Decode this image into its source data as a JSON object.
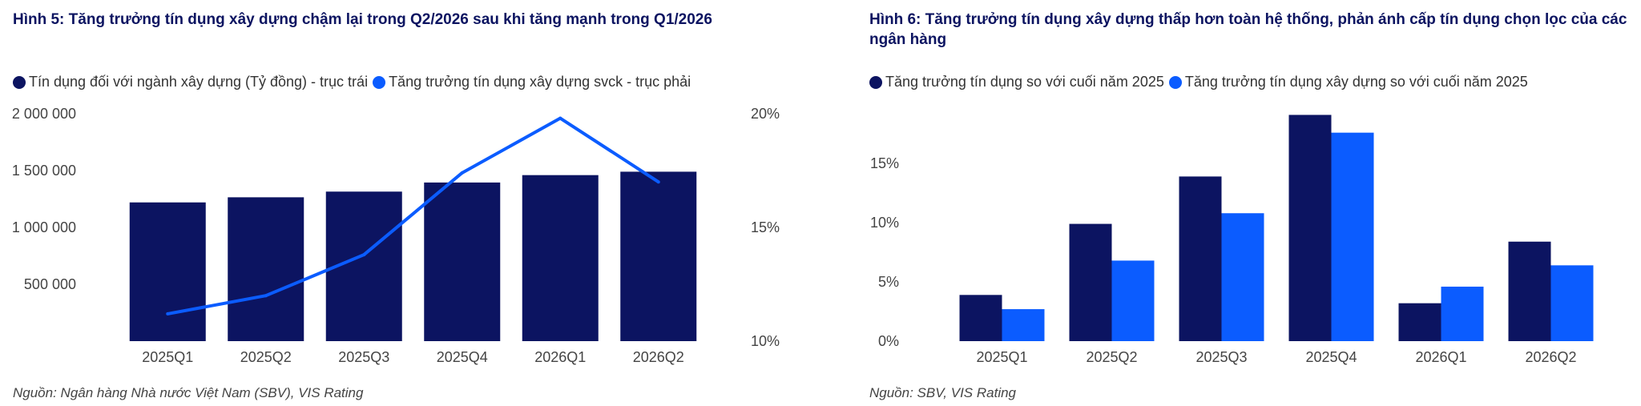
{
  "left": {
    "title": "Hình 5: Tăng trưởng tín dụng xây dựng chậm lại trong Q2/2026 sau khi tăng mạnh trong Q1/2026",
    "legend": [
      {
        "label": "Tín dụng đối với ngành xây dựng (Tỷ đồng) - trục trái",
        "color": "#0c1461"
      },
      {
        "label": "Tăng trưởng tín dụng xây dựng svck - trục phải",
        "color": "#0b5cff"
      }
    ],
    "source": "Nguồn: Ngân hàng Nhà nước Việt Nam (SBV), VIS Rating"
  },
  "right": {
    "title": "Hình 6: Tăng trưởng tín dụng xây dựng thấp hơn toàn hệ thống, phản ánh cấp tín dụng chọn lọc của các ngân hàng",
    "legend": [
      {
        "label": "Tăng trưởng tín dụng so với cuối năm 2025",
        "color": "#0c1461"
      },
      {
        "label": "Tăng trưởng tín dụng xây dựng so với cuối năm 2025",
        "color": "#0b5cff"
      }
    ],
    "source": "Nguồn: SBV, VIS Rating"
  },
  "chart_data": [
    {
      "type": "bar+line",
      "categories": [
        "2025Q1",
        "2025Q2",
        "2025Q3",
        "2025Q4",
        "2026Q1",
        "2026Q2"
      ],
      "series": [
        {
          "name": "Tín dụng đối với ngành xây dựng (Tỷ đồng) - trục trái",
          "type": "bar",
          "axis": "left",
          "color": "#0c1461",
          "values": [
            1220000,
            1265000,
            1315000,
            1395000,
            1460000,
            1490000
          ]
        },
        {
          "name": "Tăng trưởng tín dụng xây dựng svck - trục phải",
          "type": "line",
          "axis": "right",
          "color": "#0b5cff",
          "values": [
            11.2,
            12.0,
            13.8,
            17.4,
            19.8,
            17.0
          ]
        }
      ],
      "y_left": {
        "min": 0,
        "max": 2000000,
        "ticks": [
          500000,
          1000000,
          1500000,
          2000000
        ],
        "tick_labels": [
          "500 000",
          "1 000 000",
          "1 500 000",
          "2 000 000"
        ]
      },
      "y_right": {
        "min": 10,
        "max": 20,
        "ticks": [
          10,
          15,
          20
        ],
        "tick_labels": [
          "10%",
          "15%",
          "20%"
        ]
      },
      "grid": false,
      "legend_position": "top-left"
    },
    {
      "type": "bar",
      "categories": [
        "2025Q1",
        "2025Q2",
        "2025Q3",
        "2025Q4",
        "2026Q1",
        "2026Q2"
      ],
      "series": [
        {
          "name": "Tăng trưởng tín dụng so với cuối năm 2025",
          "color": "#0c1461",
          "values": [
            3.9,
            9.9,
            13.9,
            19.1,
            3.2,
            8.4
          ]
        },
        {
          "name": "Tăng trưởng tín dụng xây dựng so với cuối năm 2025",
          "color": "#0b5cff",
          "values": [
            2.7,
            6.8,
            10.8,
            17.6,
            4.6,
            6.4
          ]
        }
      ],
      "y": {
        "min": 0,
        "max": 19.2,
        "ticks": [
          0,
          5,
          10,
          15
        ],
        "tick_labels": [
          "0%",
          "5%",
          "10%",
          "15%"
        ]
      },
      "grid": false,
      "legend_position": "top-left"
    }
  ]
}
